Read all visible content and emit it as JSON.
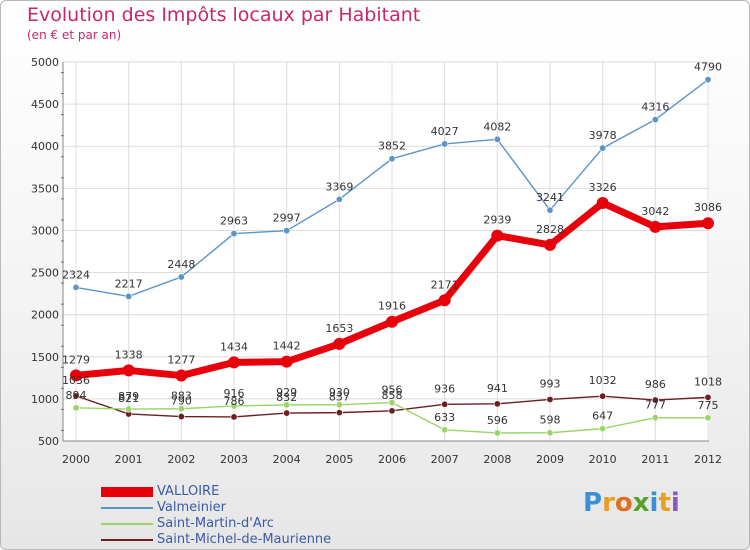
{
  "chart_data": {
    "type": "line",
    "title": "Evolution des Impôts locaux par Habitant",
    "subtitle": "(en € et par an)",
    "x": [
      "2000",
      "2001",
      "2002",
      "2003",
      "2004",
      "2005",
      "2006",
      "2007",
      "2008",
      "2009",
      "2010",
      "2011",
      "2012"
    ],
    "ylim": [
      500,
      5000
    ],
    "yticks": [
      500,
      1000,
      1500,
      2000,
      2500,
      3000,
      3500,
      4000,
      4500,
      5000
    ],
    "grid": true,
    "legend_position": "bottom-left",
    "series": [
      {
        "name": "VALLOIRE",
        "color": "#e8000b",
        "values": [
          1279,
          1338,
          1277,
          1434,
          1442,
          1653,
          1916,
          2171,
          2939,
          2828,
          3326,
          3042,
          3086
        ]
      },
      {
        "name": "Valmeinier",
        "color": "#5b94c8",
        "values": [
          2324,
          2217,
          2448,
          2963,
          2997,
          3369,
          3852,
          4027,
          4082,
          3241,
          3978,
          4316,
          4790
        ]
      },
      {
        "name": "Saint-Martin-d'Arc",
        "color": "#9ad56a",
        "values": [
          894,
          879,
          883,
          916,
          929,
          930,
          956,
          633,
          596,
          598,
          647,
          777,
          775
        ]
      },
      {
        "name": "Saint-Michel-de-Maurienne",
        "color": "#6b1f1f",
        "values": [
          1036,
          821,
          790,
          786,
          832,
          837,
          858,
          936,
          941,
          993,
          1032,
          986,
          1018
        ]
      }
    ]
  },
  "logo": "Prox|iti"
}
